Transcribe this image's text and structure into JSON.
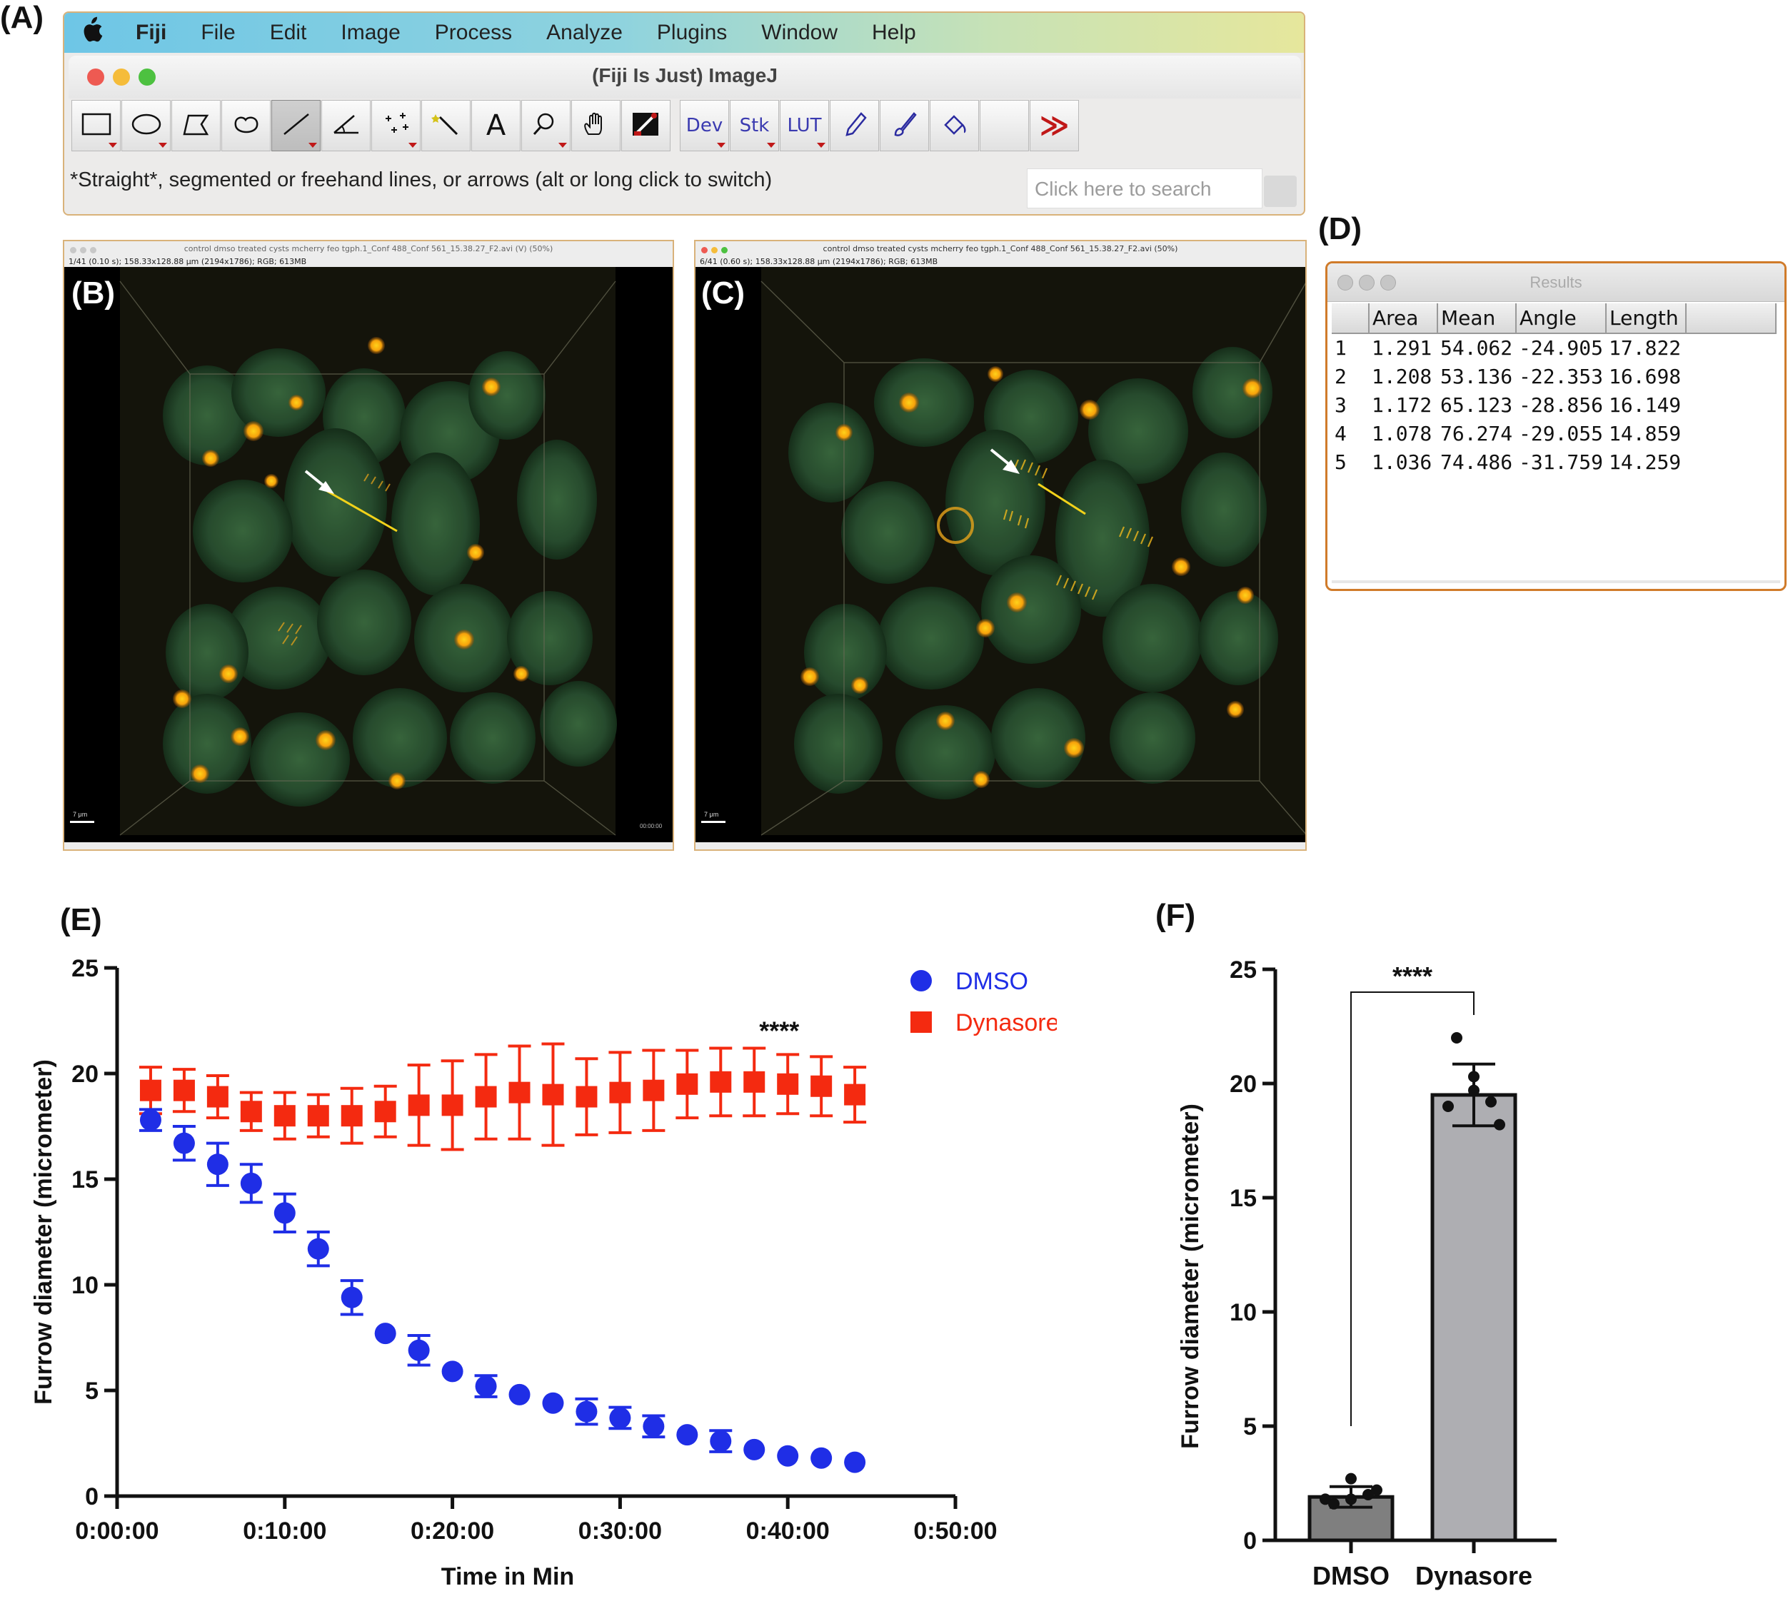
{
  "panels": {
    "a": "(A)",
    "b": "(B)",
    "c": "(C)",
    "d": "(D)",
    "e": "(E)",
    "f": "(F)"
  },
  "fiji": {
    "menu": [
      "Fiji",
      "File",
      "Edit",
      "Image",
      "Process",
      "Analyze",
      "Plugins",
      "Window",
      "Help"
    ],
    "window_title": "(Fiji Is Just) ImageJ",
    "tools_text": {
      "dev": "Dev",
      "stk": "Stk",
      "lut": "LUT",
      "more": "≫",
      "text_tool": "A"
    },
    "status": "*Straight*, segmented or freehand lines, or arrows (alt or long click to switch)",
    "search_placeholder": "Click here to search",
    "colors": {
      "close": "#ee5a52",
      "minimize": "#f5bc3a",
      "zoom": "#4dc140",
      "accent_red": "#c01818"
    }
  },
  "image_b": {
    "title": "control dmso treated cysts mcherry feo tgph.1_Conf 488_Conf 561_15.38.27_F2.avi (V) (50%)",
    "info": "1/41 (0.10 s); 158.33x128.88 μm (2194x1786); RGB; 613MB",
    "scale_label": "7 μm",
    "timestamp": "00:00:00"
  },
  "image_c": {
    "title": "control dmso treated cysts mcherry feo tgph.1_Conf 488_Conf 561_15.38.27_F2.avi (50%)",
    "info": "6/41 (0.60 s); 158.33x128.88 μm (2194x1786); RGB; 613MB",
    "scale_label": "7 μm"
  },
  "results": {
    "title": "Results",
    "columns": [
      "",
      "Area",
      "Mean",
      "Angle",
      "Length"
    ],
    "rows": [
      [
        "1",
        "1.291",
        "54.062",
        "-24.905",
        "17.822"
      ],
      [
        "2",
        "1.208",
        "53.136",
        "-22.353",
        "16.698"
      ],
      [
        "3",
        "1.172",
        "65.123",
        "-28.856",
        "16.149"
      ],
      [
        "4",
        "1.078",
        "76.274",
        "-29.055",
        "14.859"
      ],
      [
        "5",
        "1.036",
        "74.486",
        "-31.759",
        "14.259"
      ]
    ]
  },
  "chart_data": [
    {
      "type": "scatter",
      "xlabel": "Time in Min",
      "ylabel": "Furrow diameter (micrometer)",
      "x_ticks": [
        "0:00:00",
        "0:10:00",
        "0:20:00",
        "0:30:00",
        "0:40:00",
        "0:50:00"
      ],
      "xlim_min": [
        0,
        50
      ],
      "y_ticks": [
        "0",
        "5",
        "10",
        "15",
        "20",
        "25"
      ],
      "ylim": [
        0,
        25
      ],
      "legend_position": "top-right",
      "annotation": "****",
      "x_min": [
        2,
        4,
        6,
        8,
        10,
        12,
        14,
        16,
        18,
        20,
        22,
        24,
        26,
        28,
        30,
        32,
        34,
        36,
        38,
        40,
        42,
        44
      ],
      "series": [
        {
          "name": "DMSO",
          "marker": "circle",
          "color": "#1f2ee6",
          "y": [
            17.8,
            16.7,
            15.7,
            14.8,
            13.4,
            11.7,
            9.4,
            7.7,
            6.9,
            5.9,
            5.2,
            4.8,
            4.4,
            4.0,
            3.7,
            3.3,
            2.9,
            2.6,
            2.2,
            1.9,
            1.8,
            1.6
          ],
          "err": [
            0.5,
            0.8,
            1.0,
            0.9,
            0.9,
            0.8,
            0.8,
            0.0,
            0.7,
            0.0,
            0.5,
            0.0,
            0.0,
            0.6,
            0.5,
            0.5,
            0.0,
            0.5,
            0.0,
            0.0,
            0.0,
            0.0
          ]
        },
        {
          "name": "Dynasore",
          "marker": "square",
          "color": "#f42a10",
          "y": [
            19.2,
            19.2,
            18.9,
            18.2,
            18.0,
            18.0,
            18.0,
            18.2,
            18.5,
            18.5,
            18.9,
            19.1,
            19.0,
            18.9,
            19.1,
            19.2,
            19.5,
            19.6,
            19.6,
            19.5,
            19.4,
            19.0
          ],
          "err": [
            1.1,
            1.0,
            1.0,
            0.9,
            1.1,
            1.0,
            1.3,
            1.2,
            1.9,
            2.1,
            2.0,
            2.2,
            2.4,
            1.8,
            1.9,
            1.9,
            1.6,
            1.6,
            1.6,
            1.4,
            1.4,
            1.3
          ]
        }
      ]
    },
    {
      "type": "bar",
      "ylabel": "Furrow diameter (micrometer)",
      "categories": [
        "DMSO",
        "Dynasore"
      ],
      "values": [
        1.9,
        19.5
      ],
      "err": [
        0.45,
        1.35
      ],
      "points": [
        [
          1.6,
          1.8,
          2.0,
          2.7,
          1.8,
          2.2
        ],
        [
          22.0,
          19.7,
          19.2,
          20.3,
          19.0,
          18.2
        ]
      ],
      "colors": [
        "#7f7f7f",
        "#aeaeb2"
      ],
      "y_ticks": [
        "0",
        "5",
        "10",
        "15",
        "20",
        "25"
      ],
      "ylim": [
        0,
        25
      ],
      "annotation": "****"
    }
  ]
}
